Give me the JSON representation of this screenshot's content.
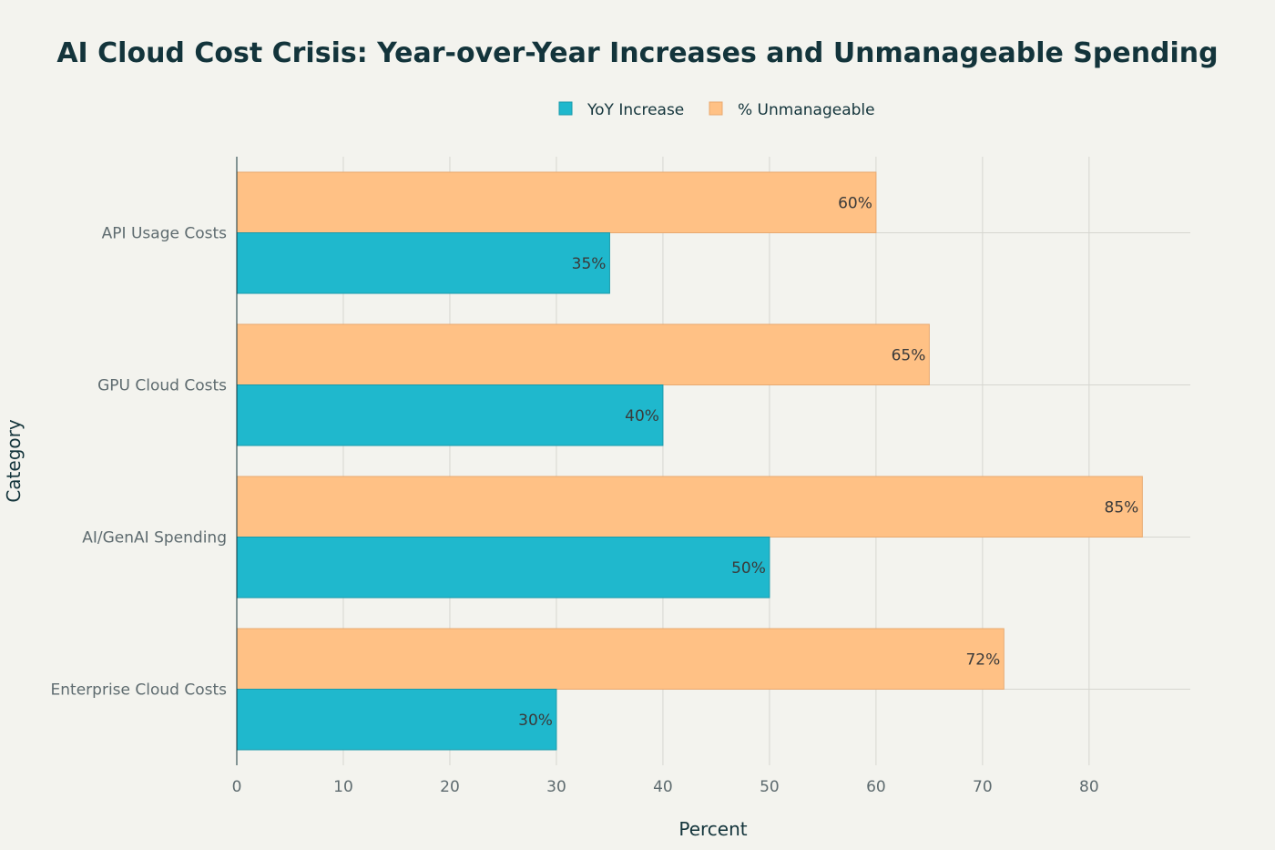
{
  "chart_data": {
    "type": "bar",
    "orientation": "horizontal",
    "title": "AI Cloud Cost Crisis: Year-over-Year Increases and Unmanageable Spending",
    "xlabel": "Percent",
    "ylabel": "Category",
    "categories": [
      "API Usage Costs",
      "GPU Cloud Costs",
      "AI/GenAI Spending",
      "Enterprise Cloud Costs"
    ],
    "series": [
      {
        "name": "YoY Increase",
        "values": [
          35,
          40,
          50,
          30
        ],
        "labels": [
          "35%",
          "40%",
          "50%",
          "30%"
        ],
        "color": "#1fb8cd"
      },
      {
        "name": "% Unmanageable",
        "values": [
          60,
          65,
          85,
          72
        ],
        "labels": [
          "60%",
          "65%",
          "85%",
          "72%"
        ],
        "color": "#ffc185"
      }
    ],
    "xlim": [
      0,
      89.5
    ],
    "xticks": [
      0,
      10,
      20,
      30,
      40,
      50,
      60,
      70,
      80
    ],
    "grid": true,
    "legend_position": "top-center"
  },
  "colors": {
    "background": "#f3f3ee",
    "grid": "#d6d6d0",
    "axis": "#13343b",
    "title": "#13343b"
  }
}
